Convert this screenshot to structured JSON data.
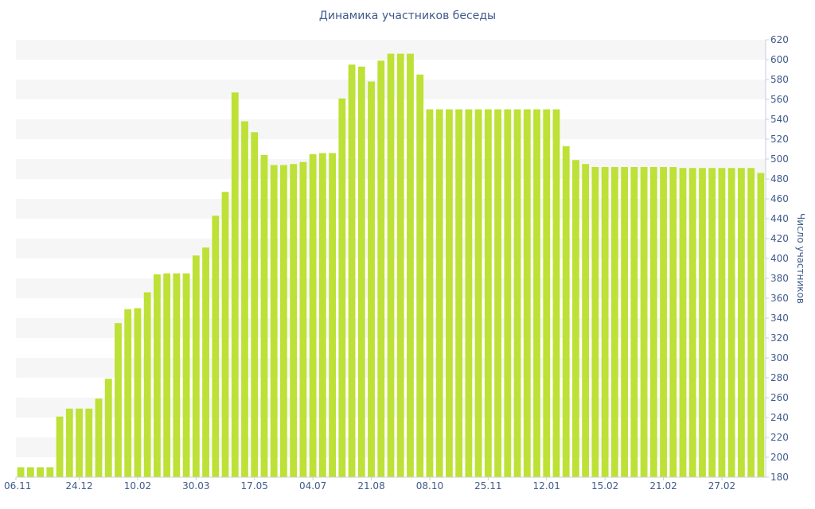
{
  "chart_data": {
    "type": "bar",
    "title": "Динамика участников беседы",
    "xlabel": "",
    "ylabel": "Число участников",
    "ylim": [
      180,
      620
    ],
    "ytick_step": 20,
    "x_tick_labels": [
      {
        "index": 0,
        "label": "06.11"
      },
      {
        "index": 6,
        "label": "24.12"
      },
      {
        "index": 12,
        "label": "10.02"
      },
      {
        "index": 18,
        "label": "30.03"
      },
      {
        "index": 24,
        "label": "17.05"
      },
      {
        "index": 30,
        "label": "04.07"
      },
      {
        "index": 36,
        "label": "21.08"
      },
      {
        "index": 42,
        "label": "08.10"
      },
      {
        "index": 48,
        "label": "25.11"
      },
      {
        "index": 54,
        "label": "12.01"
      },
      {
        "index": 60,
        "label": "15.02"
      },
      {
        "index": 66,
        "label": "21.02"
      },
      {
        "index": 72,
        "label": "27.02"
      }
    ],
    "values": [
      190,
      190,
      190,
      190,
      241,
      249,
      249,
      249,
      259,
      279,
      335,
      349,
      350,
      366,
      384,
      385,
      385,
      385,
      403,
      411,
      443,
      467,
      567,
      538,
      527,
      504,
      494,
      494,
      495,
      497,
      505,
      506,
      506,
      561,
      595,
      593,
      578,
      599,
      606,
      606,
      606,
      585,
      550,
      550,
      550,
      550,
      550,
      550,
      550,
      550,
      550,
      550,
      550,
      550,
      550,
      550,
      513,
      499,
      495,
      492,
      492,
      492,
      492,
      492,
      492,
      492,
      492,
      492,
      491,
      491,
      491,
      491,
      491,
      491,
      491,
      491,
      486
    ],
    "grid": true,
    "legend": "none",
    "bar_color": "#bde136",
    "band_color": "#f6f6f6",
    "axis_text_color": "#3f5a8c"
  }
}
